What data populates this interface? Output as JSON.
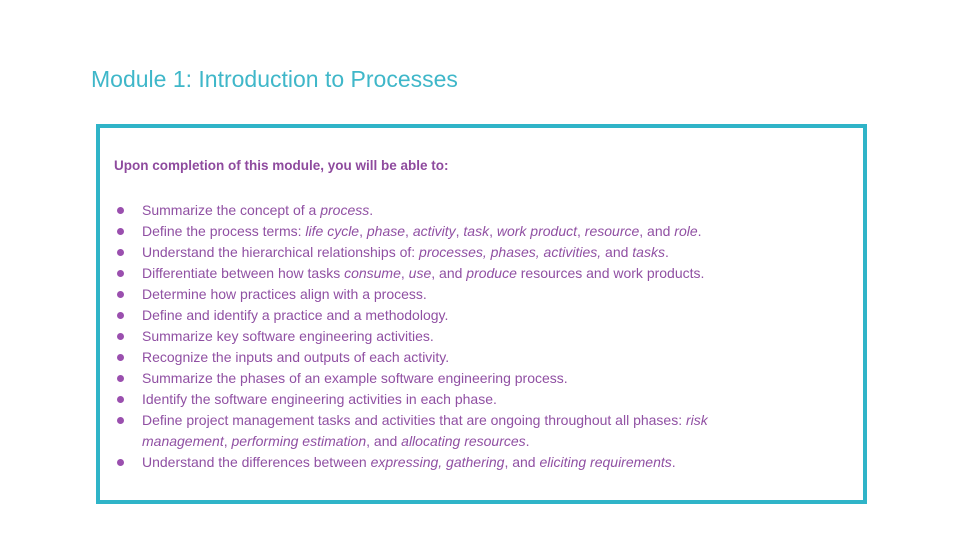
{
  "header": {
    "title": "Module 1: Introduction to Processes"
  },
  "objectives": {
    "heading": "Upon completion of this module, you will be able to:",
    "items": [
      [
        "Summarize the concept of a ",
        "process",
        "."
      ],
      [
        "Define the process terms: ",
        "life cycle",
        ", ",
        "phase",
        ", ",
        "activity",
        ", ",
        "task",
        ", ",
        "work product",
        ", ",
        "resource",
        ", and ",
        "role",
        "."
      ],
      [
        "Understand the hierarchical relationships of: ",
        "processes, phases, activities,",
        " and ",
        "tasks",
        "."
      ],
      [
        "Differentiate between how tasks ",
        "consume",
        ", ",
        "use",
        ", and ",
        "produce",
        " resources and work products."
      ],
      [
        "Determine how practices align with a process."
      ],
      [
        "Define and identify a practice and a methodology."
      ],
      [
        "Summarize key software engineering activities."
      ],
      [
        "Recognize the inputs and outputs of each activity."
      ],
      [
        "Summarize the phases of an example software engineering process."
      ],
      [
        "Identify the software engineering activities in each phase."
      ],
      [
        "Define project management tasks and activities that are ongoing throughout all phases: ",
        "risk management",
        ", ",
        "performing estimation",
        ", and ",
        "allocating resources",
        "."
      ],
      [
        "Understand the differences between ",
        "expressing, gathering",
        ", and ",
        "eliciting requirements",
        "."
      ]
    ]
  }
}
